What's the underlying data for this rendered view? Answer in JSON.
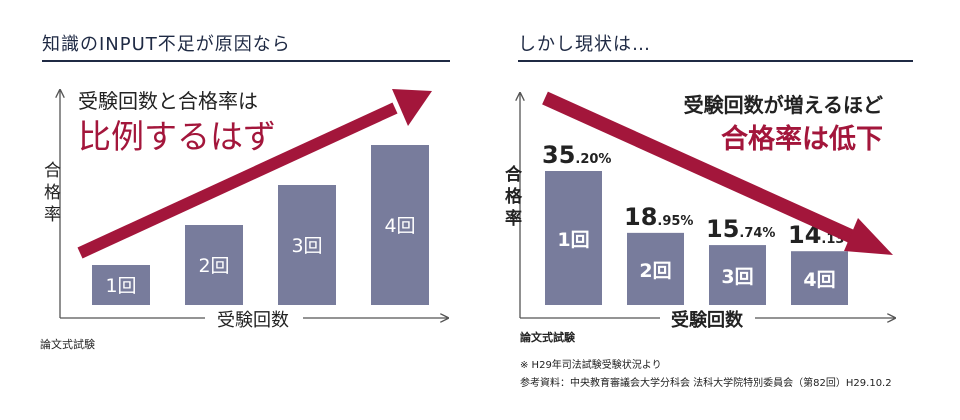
{
  "colors": {
    "bar": "#787c9c",
    "arrow": "#a3163b",
    "navy": "#1f2a44",
    "axis": "#555555"
  },
  "chart_data": [
    {
      "type": "bar",
      "title": "知識のINPUT不足が原因なら",
      "categories": [
        "1回",
        "2回",
        "3回",
        "4回"
      ],
      "values": [
        1,
        2,
        3,
        4
      ],
      "xlabel": "受験回数",
      "ylabel": "合格率",
      "source": "論文式試験",
      "annotation_line1": "受験回数と合格率は",
      "annotation_line2": "比例するはず",
      "trend": "up"
    },
    {
      "type": "bar",
      "title": "しかし現状は…",
      "categories": [
        "1回",
        "2回",
        "3回",
        "4回"
      ],
      "values": [
        35.2,
        18.95,
        15.74,
        14.13
      ],
      "value_labels": [
        {
          "int": "35",
          "dec": ".20%"
        },
        {
          "int": "18",
          "dec": ".95%"
        },
        {
          "int": "15",
          "dec": ".74%"
        },
        {
          "int": "14",
          "dec": ".13%"
        }
      ],
      "xlabel": "受験回数",
      "ylabel": "合格率",
      "source": "論文式試験",
      "annotation_line1": "受験回数が増えるほど",
      "annotation_line2": "合格率は低下",
      "trend": "down",
      "notes": [
        "※ H29年司法試験受験状況より",
        "参考資料：中央教育審議会大学分科会 法科大学院特別委員会（第82回）H29.10.2"
      ]
    }
  ]
}
